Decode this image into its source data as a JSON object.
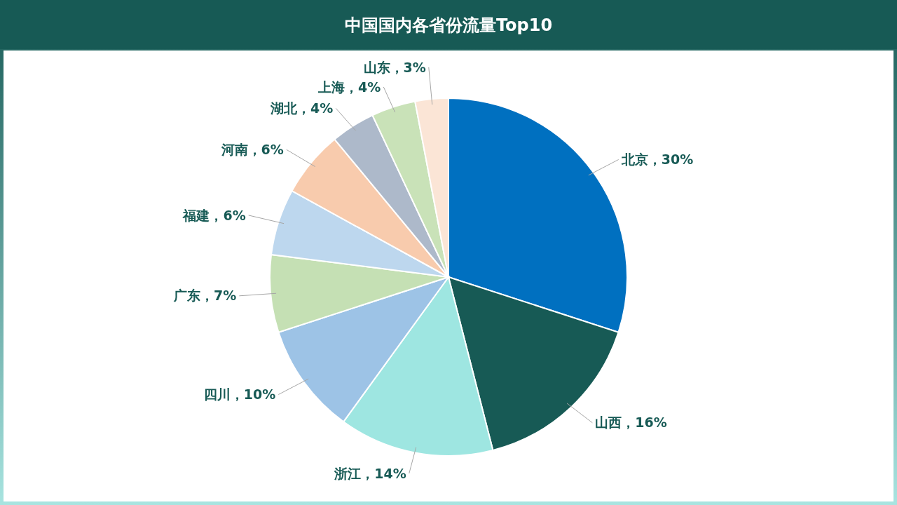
{
  "chart_data": {
    "type": "pie",
    "title": "中国国内各省份流量Top10",
    "categories": [
      "北京",
      "山西",
      "浙江",
      "四川",
      "广东",
      "福建",
      "河南",
      "湖北",
      "上海",
      "山东"
    ],
    "values": [
      30,
      16,
      14,
      10,
      7,
      6,
      6,
      4,
      4,
      3
    ],
    "value_labels": [
      "30%",
      "16%",
      "14%",
      "10%",
      "7%",
      "6%",
      "6%",
      "4%",
      "4%",
      "3%"
    ],
    "colors": [
      "#0070c0",
      "#175a55",
      "#9ee6e1",
      "#9dc3e6",
      "#c5e0b4",
      "#bdd7ee",
      "#f8cbad",
      "#adb9ca",
      "#c9e2b8",
      "#fbe5d6"
    ],
    "legend": false
  }
}
